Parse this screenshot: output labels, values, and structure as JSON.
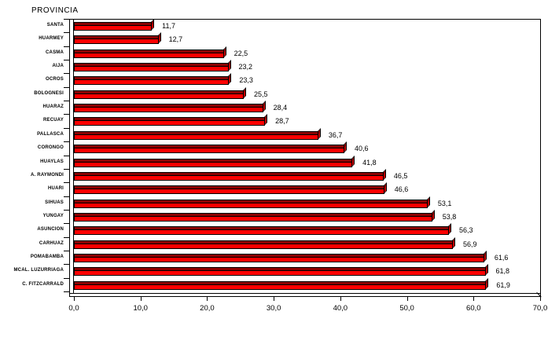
{
  "title": "PROVINCIA",
  "colors": {
    "bar_front": "#FF0000",
    "bar_top": "#8B0000",
    "bar_side": "#C40000",
    "outline": "#000000",
    "background": "#FFFFFF",
    "text": "#000000"
  },
  "chart_data": {
    "type": "bar",
    "orientation": "horizontal",
    "title": "PROVINCIA",
    "xlabel": "",
    "ylabel": "PROVINCIA",
    "xlim": [
      0,
      70
    ],
    "grid": false,
    "legend": "none",
    "categories": [
      "SANTA",
      "HUARMEY",
      "CASMA",
      "AIJA",
      "OCROS",
      "BOLOGNESI",
      "HUARAZ",
      "RECUAY",
      "PALLASCA",
      "CORONGO",
      "HUAYLAS",
      "A. RAYMONDI",
      "HUARI",
      "SIHUAS",
      "YUNGAY",
      "ASUNCION",
      "CARHUAZ",
      "POMABAMBA",
      "MCAL. LUZURRIAGA",
      "C. FITZCARRALD"
    ],
    "values": [
      11.7,
      12.7,
      22.5,
      23.2,
      23.3,
      25.5,
      28.4,
      28.7,
      36.7,
      40.6,
      41.8,
      46.5,
      46.6,
      53.1,
      53.8,
      56.3,
      56.9,
      61.6,
      61.8,
      61.9
    ],
    "value_labels": [
      "11,7",
      "12,7",
      "22,5",
      "23,2",
      "23,3",
      "25,5",
      "28,4",
      "28,7",
      "36,7",
      "40,6",
      "41,8",
      "46,5",
      "46,6",
      "53,1",
      "53,8",
      "56,3",
      "56,9",
      "61,6",
      "61,8",
      "61,9"
    ],
    "x_tick_values": [
      0,
      10,
      20,
      30,
      40,
      50,
      60,
      70
    ],
    "x_tick_labels": [
      "0,0",
      "10,0",
      "20,0",
      "30,0",
      "40,0",
      "50,0",
      "60,0",
      "70,0"
    ]
  }
}
